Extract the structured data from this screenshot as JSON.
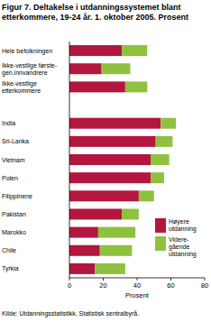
{
  "chart_data": {
    "type": "bar",
    "orientation": "horizontal",
    "stacked": true,
    "title": "Figur 7. Deltakelse i utdanningssystemet blant etterkommere, 19-24 år. 1. oktober 2005. Prosent",
    "x_label": "Prosent",
    "source": "Kilde: Utdanningsstatistikk, Statistisk sentralbyrå.",
    "categories": [
      "Hele befolkningen",
      "Ikke-vestlige første-gen.innvandrere",
      "Ikke-vestlige etterkommere",
      null,
      "India",
      "Sri-Lanka",
      "Vietnam",
      "Polen",
      "Filippinene",
      "Pakistan",
      "Marokko",
      "Chile",
      "Tyrkia"
    ],
    "series": [
      {
        "name": "Høyere utdanning",
        "color": "#b3163e",
        "values": [
          31,
          19,
          33,
          null,
          54,
          51,
          48,
          48,
          41,
          31,
          17,
          18,
          15
        ]
      },
      {
        "name": "Videre-gående utdanning",
        "color": "#8fc13f",
        "values": [
          15,
          17,
          13,
          null,
          9,
          10,
          11,
          8,
          9,
          10,
          22,
          19,
          18
        ]
      }
    ],
    "xlim": [
      0,
      80
    ],
    "xticks": [
      0,
      20,
      40,
      60,
      80
    ],
    "grid": false,
    "legend": "lower right"
  }
}
